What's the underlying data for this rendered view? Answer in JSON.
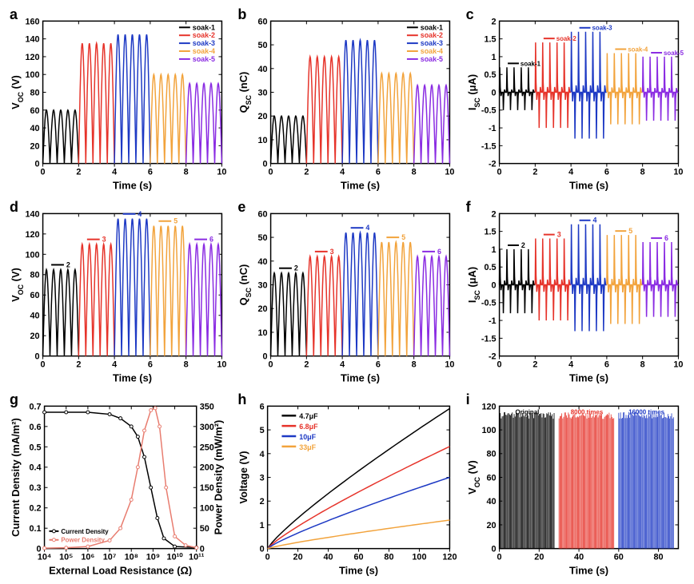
{
  "colors": {
    "black": "#000000",
    "red": "#e6332a",
    "blue": "#1d39c4",
    "orange": "#f2a33c",
    "purple": "#8a2be2",
    "salmon": "#e87c6f"
  },
  "panels": {
    "a": {
      "label": "a",
      "type": "line-oscillation",
      "xlabel": "Time (s)",
      "ylabel": "V_OC (V)",
      "xlim": [
        0,
        10
      ],
      "ylim": [
        0,
        160
      ],
      "xticks": [
        0,
        2,
        4,
        6,
        8,
        10
      ],
      "yticks": [
        0,
        20,
        40,
        60,
        80,
        100,
        120,
        140,
        160
      ],
      "series": [
        {
          "name": "soak-1",
          "color": "#000000",
          "amp": 60,
          "x0": 0,
          "x1": 2
        },
        {
          "name": "soak-2",
          "color": "#e6332a",
          "amp": 135,
          "x0": 2,
          "x1": 4
        },
        {
          "name": "soak-3",
          "color": "#1d39c4",
          "amp": 145,
          "x0": 4,
          "x1": 6
        },
        {
          "name": "soak-4",
          "color": "#f2a33c",
          "amp": 100,
          "x0": 6,
          "x1": 8
        },
        {
          "name": "soak-5",
          "color": "#8a2be2",
          "amp": 90,
          "x0": 8,
          "x1": 10
        }
      ],
      "legend_pos": "top-right"
    },
    "b": {
      "label": "b",
      "type": "line-oscillation",
      "xlabel": "Time (s)",
      "ylabel": "Q_SC (nC)",
      "xlim": [
        0,
        10
      ],
      "ylim": [
        0,
        60
      ],
      "xticks": [
        0,
        2,
        4,
        6,
        8,
        10
      ],
      "yticks": [
        0,
        10,
        20,
        30,
        40,
        50,
        60
      ],
      "series": [
        {
          "name": "soak-1",
          "color": "#000000",
          "amp": 20,
          "x0": 0,
          "x1": 2
        },
        {
          "name": "soak-2",
          "color": "#e6332a",
          "amp": 45,
          "x0": 2,
          "x1": 4
        },
        {
          "name": "soak-3",
          "color": "#1d39c4",
          "amp": 52,
          "x0": 4,
          "x1": 6
        },
        {
          "name": "soak-4",
          "color": "#f2a33c",
          "amp": 38,
          "x0": 6,
          "x1": 8
        },
        {
          "name": "soak-5",
          "color": "#8a2be2",
          "amp": 33,
          "x0": 8,
          "x1": 10
        }
      ],
      "legend_pos": "top-right"
    },
    "c": {
      "label": "c",
      "type": "spike",
      "xlabel": "Time (s)",
      "ylabel": "I_SC (μA)",
      "xlim": [
        0,
        10
      ],
      "ylim": [
        -2.0,
        2.0
      ],
      "xticks": [
        0,
        2,
        4,
        6,
        8,
        10
      ],
      "yticks": [
        -2.0,
        -1.5,
        -1.0,
        -0.5,
        0.0,
        0.5,
        1.0,
        1.5,
        2.0
      ],
      "series": [
        {
          "name": "soak-1",
          "color": "#000000",
          "up": 0.7,
          "down": -0.5,
          "x0": 0,
          "x1": 2
        },
        {
          "name": "soak-2",
          "color": "#e6332a",
          "up": 1.4,
          "down": -1.0,
          "x0": 2,
          "x1": 4
        },
        {
          "name": "soak-3",
          "color": "#1d39c4",
          "up": 1.7,
          "down": -1.3,
          "x0": 4,
          "x1": 6
        },
        {
          "name": "soak-4",
          "color": "#f2a33c",
          "up": 1.1,
          "down": -0.9,
          "x0": 6,
          "x1": 8
        },
        {
          "name": "soak-5",
          "color": "#8a2be2",
          "up": 1.0,
          "down": -0.8,
          "x0": 8,
          "x1": 10
        }
      ],
      "legend_pos": "top-inline"
    },
    "d": {
      "label": "d",
      "type": "line-oscillation",
      "xlabel": "Time (s)",
      "ylabel": "V_OC (V)",
      "xlim": [
        0,
        10
      ],
      "ylim": [
        0,
        140
      ],
      "xticks": [
        0,
        2,
        4,
        6,
        8,
        10
      ],
      "yticks": [
        0,
        20,
        40,
        60,
        80,
        100,
        120,
        140
      ],
      "series": [
        {
          "name": "2",
          "color": "#000000",
          "amp": 85,
          "x0": 0,
          "x1": 2
        },
        {
          "name": "3",
          "color": "#e6332a",
          "amp": 110,
          "x0": 2,
          "x1": 4
        },
        {
          "name": "4",
          "color": "#1d39c4",
          "amp": 135,
          "x0": 4,
          "x1": 6
        },
        {
          "name": "5",
          "color": "#f2a33c",
          "amp": 128,
          "x0": 6,
          "x1": 8
        },
        {
          "name": "6",
          "color": "#8a2be2",
          "amp": 110,
          "x0": 8,
          "x1": 10
        }
      ],
      "legend_pos": "marker"
    },
    "e": {
      "label": "e",
      "type": "line-oscillation",
      "xlabel": "Time (s)",
      "ylabel": "Q_SC (nC)",
      "xlim": [
        0,
        10
      ],
      "ylim": [
        0,
        60
      ],
      "xticks": [
        0,
        2,
        4,
        6,
        8,
        10
      ],
      "yticks": [
        0,
        10,
        20,
        30,
        40,
        50,
        60
      ],
      "series": [
        {
          "name": "2",
          "color": "#000000",
          "amp": 35,
          "x0": 0,
          "x1": 2
        },
        {
          "name": "3",
          "color": "#e6332a",
          "amp": 42,
          "x0": 2,
          "x1": 4
        },
        {
          "name": "4",
          "color": "#1d39c4",
          "amp": 52,
          "x0": 4,
          "x1": 6
        },
        {
          "name": "5",
          "color": "#f2a33c",
          "amp": 48,
          "x0": 6,
          "x1": 8
        },
        {
          "name": "6",
          "color": "#8a2be2",
          "amp": 42,
          "x0": 8,
          "x1": 10
        }
      ],
      "legend_pos": "marker"
    },
    "f": {
      "label": "f",
      "type": "spike",
      "xlabel": "Time (s)",
      "ylabel": "I_SC (μA)",
      "xlim": [
        0,
        10
      ],
      "ylim": [
        -2.0,
        2.0
      ],
      "xticks": [
        0,
        2,
        4,
        6,
        8,
        10
      ],
      "yticks": [
        -2.0,
        -1.5,
        -1.0,
        -0.5,
        0.0,
        0.5,
        1.0,
        1.5,
        2.0
      ],
      "series": [
        {
          "name": "2",
          "color": "#000000",
          "up": 1.0,
          "down": -0.8,
          "x0": 0,
          "x1": 2
        },
        {
          "name": "3",
          "color": "#e6332a",
          "up": 1.3,
          "down": -1.0,
          "x0": 2,
          "x1": 4
        },
        {
          "name": "4",
          "color": "#1d39c4",
          "up": 1.7,
          "down": -1.3,
          "x0": 4,
          "x1": 6
        },
        {
          "name": "5",
          "color": "#f2a33c",
          "up": 1.4,
          "down": -1.1,
          "x0": 6,
          "x1": 8
        },
        {
          "name": "6",
          "color": "#8a2be2",
          "up": 1.2,
          "down": -0.9,
          "x0": 8,
          "x1": 10
        }
      ],
      "legend_pos": "marker"
    },
    "g": {
      "label": "g",
      "type": "dual-axis",
      "xlabel": "External Load Resistance (Ω)",
      "ylabel_left": "Current Density (mA/m²)",
      "ylabel_right": "Power Density (mW/m²)",
      "xlim": [
        10000.0,
        100000000000.0
      ],
      "ylim_left": [
        0.0,
        0.7
      ],
      "ylim_right": [
        0,
        350
      ],
      "xticks": [
        "10⁴",
        "10⁵",
        "10⁶",
        "10⁷",
        "10⁸",
        "10⁹",
        "10¹⁰",
        "10¹¹"
      ],
      "yticks_left": [
        0.0,
        0.1,
        0.2,
        0.3,
        0.4,
        0.5,
        0.6,
        0.7
      ],
      "yticks_right": [
        0,
        50,
        100,
        150,
        200,
        250,
        300,
        350
      ],
      "series": [
        {
          "name": "Current Density",
          "color": "#000000",
          "axis": "left",
          "points": [
            [
              4,
              0.67
            ],
            [
              5,
              0.67
            ],
            [
              6,
              0.67
            ],
            [
              7,
              0.66
            ],
            [
              7.5,
              0.64
            ],
            [
              8,
              0.6
            ],
            [
              8.3,
              0.55
            ],
            [
              8.6,
              0.45
            ],
            [
              8.9,
              0.3
            ],
            [
              9.2,
              0.15
            ],
            [
              9.5,
              0.05
            ],
            [
              10,
              0.01
            ],
            [
              11,
              0.005
            ]
          ]
        },
        {
          "name": "Power Density",
          "color": "#e87c6f",
          "axis": "right",
          "points": [
            [
              4,
              1
            ],
            [
              5,
              2
            ],
            [
              6,
              5
            ],
            [
              7,
              20
            ],
            [
              7.5,
              50
            ],
            [
              8,
              120
            ],
            [
              8.3,
              200
            ],
            [
              8.6,
              290
            ],
            [
              8.9,
              340
            ],
            [
              9.1,
              345
            ],
            [
              9.3,
              300
            ],
            [
              9.6,
              150
            ],
            [
              10,
              30
            ],
            [
              10.5,
              8
            ],
            [
              11,
              2
            ]
          ]
        }
      ]
    },
    "h": {
      "label": "h",
      "type": "line",
      "xlabel": "Time (s)",
      "ylabel": "Voltage (V)",
      "xlim": [
        0,
        120
      ],
      "ylim": [
        0,
        6
      ],
      "xticks": [
        0,
        20,
        40,
        60,
        80,
        100,
        120
      ],
      "yticks": [
        0,
        1,
        2,
        3,
        4,
        5,
        6
      ],
      "series": [
        {
          "name": "4.7μF",
          "color": "#000000",
          "end": 5.9
        },
        {
          "name": "6.8μF",
          "color": "#e6332a",
          "end": 4.3
        },
        {
          "name": "10μF",
          "color": "#1d39c4",
          "end": 3.0
        },
        {
          "name": "33μF",
          "color": "#f2a33c",
          "end": 1.2
        }
      ]
    },
    "i": {
      "label": "i",
      "type": "dense-bar",
      "xlabel": "Time (s)",
      "ylabel": "V_OC (V)",
      "xlim": [
        0,
        90
      ],
      "ylim": [
        0,
        120
      ],
      "xticks": [
        0,
        20,
        40,
        60,
        80
      ],
      "yticks": [
        0,
        20,
        40,
        60,
        80,
        100,
        120
      ],
      "series": [
        {
          "name": "Original",
          "color": "#000000",
          "amp": 115,
          "x0": 0,
          "x1": 28
        },
        {
          "name": "8000 times",
          "color": "#e6332a",
          "amp": 115,
          "x0": 30,
          "x1": 58
        },
        {
          "name": "16000 times",
          "color": "#1d39c4",
          "amp": 115,
          "x0": 60,
          "x1": 88
        }
      ]
    }
  }
}
